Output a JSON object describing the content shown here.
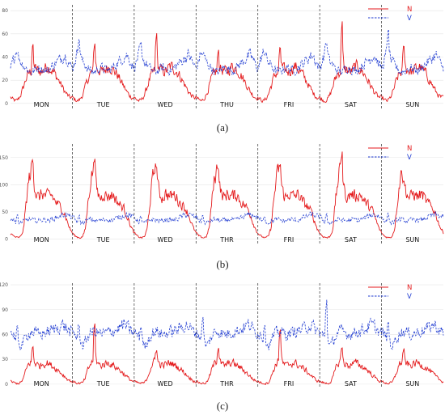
{
  "chart_data": [
    {
      "type": "line",
      "panel_label": "(a)",
      "days": [
        "MON",
        "TUE",
        "WED",
        "THU",
        "FRI",
        "SAT",
        "SUN"
      ],
      "y_ticks": [
        0,
        20,
        40,
        60,
        80
      ],
      "ylim": [
        -5,
        85
      ],
      "grid": true,
      "legend_position": "top-right",
      "series": [
        {
          "name": "N",
          "color": "#e41a1c",
          "style": "solid",
          "daily_pattern": [
            5,
            3,
            2,
            4,
            8,
            15,
            22,
            26,
            28,
            30,
            29,
            28,
            27,
            30,
            32,
            31,
            28,
            26,
            22,
            18,
            14,
            10,
            7,
            5
          ],
          "peaks": [
            54,
            58,
            64,
            50,
            52,
            76,
            55
          ]
        },
        {
          "name": "V",
          "color": "#1f3bd1",
          "style": "dashed",
          "daily_pattern": [
            30,
            38,
            45,
            40,
            35,
            33,
            30,
            28,
            27,
            28,
            30,
            31,
            30,
            29,
            28,
            30,
            32,
            34,
            36,
            38,
            40,
            42,
            38,
            33
          ],
          "peaks": [
            48,
            60,
            55,
            45,
            45,
            58,
            67
          ]
        }
      ]
    },
    {
      "type": "line",
      "panel_label": "(b)",
      "days": [
        "MON",
        "TUE",
        "WED",
        "THR",
        "FRI",
        "SAT",
        "SUN"
      ],
      "y_ticks": [
        0,
        50,
        100,
        150
      ],
      "ylim": [
        -10,
        175
      ],
      "grid": true,
      "legend_position": "top-right",
      "series": [
        {
          "name": "N",
          "color": "#e41a1c",
          "style": "solid",
          "daily_pattern": [
            10,
            5,
            3,
            2,
            5,
            20,
            70,
            110,
            130,
            95,
            80,
            75,
            85,
            80,
            78,
            82,
            80,
            70,
            65,
            60,
            55,
            45,
            30,
            18
          ],
          "peaks": [
            160,
            168,
            150,
            145,
            150,
            168,
            110
          ]
        },
        {
          "name": "V",
          "color": "#1f3bd1",
          "style": "dashed",
          "daily_pattern": [
            40,
            35,
            30,
            28,
            30,
            32,
            34,
            36,
            35,
            34,
            33,
            34,
            35,
            36,
            35,
            34,
            36,
            38,
            40,
            42,
            44,
            45,
            43,
            41
          ],
          "peaks": [
            48,
            46,
            45,
            46,
            45,
            48,
            50
          ]
        }
      ]
    },
    {
      "type": "line",
      "panel_label": "(c)",
      "days": [
        "MON",
        "TUE",
        "WED",
        "THR",
        "FRI",
        "SAT",
        "SUN"
      ],
      "y_ticks": [
        0,
        30,
        60,
        90,
        120
      ],
      "ylim": [
        -5,
        122
      ],
      "grid": true,
      "legend_position": "top-right",
      "series": [
        {
          "name": "N",
          "color": "#e41a1c",
          "style": "solid",
          "daily_pattern": [
            3,
            2,
            1,
            1,
            2,
            8,
            18,
            25,
            28,
            26,
            24,
            22,
            24,
            25,
            26,
            24,
            22,
            20,
            18,
            15,
            12,
            9,
            6,
            4
          ],
          "peaks": [
            50,
            78,
            45,
            50,
            75,
            48,
            45
          ]
        },
        {
          "name": "V",
          "color": "#1f3bd1",
          "style": "dashed",
          "daily_pattern": [
            62,
            60,
            55,
            50,
            45,
            52,
            58,
            62,
            64,
            63,
            62,
            60,
            61,
            62,
            63,
            64,
            65,
            66,
            68,
            70,
            72,
            70,
            66,
            63
          ],
          "peaks": [
            75,
            80,
            78,
            85,
            82,
            112,
            80
          ]
        }
      ]
    }
  ]
}
